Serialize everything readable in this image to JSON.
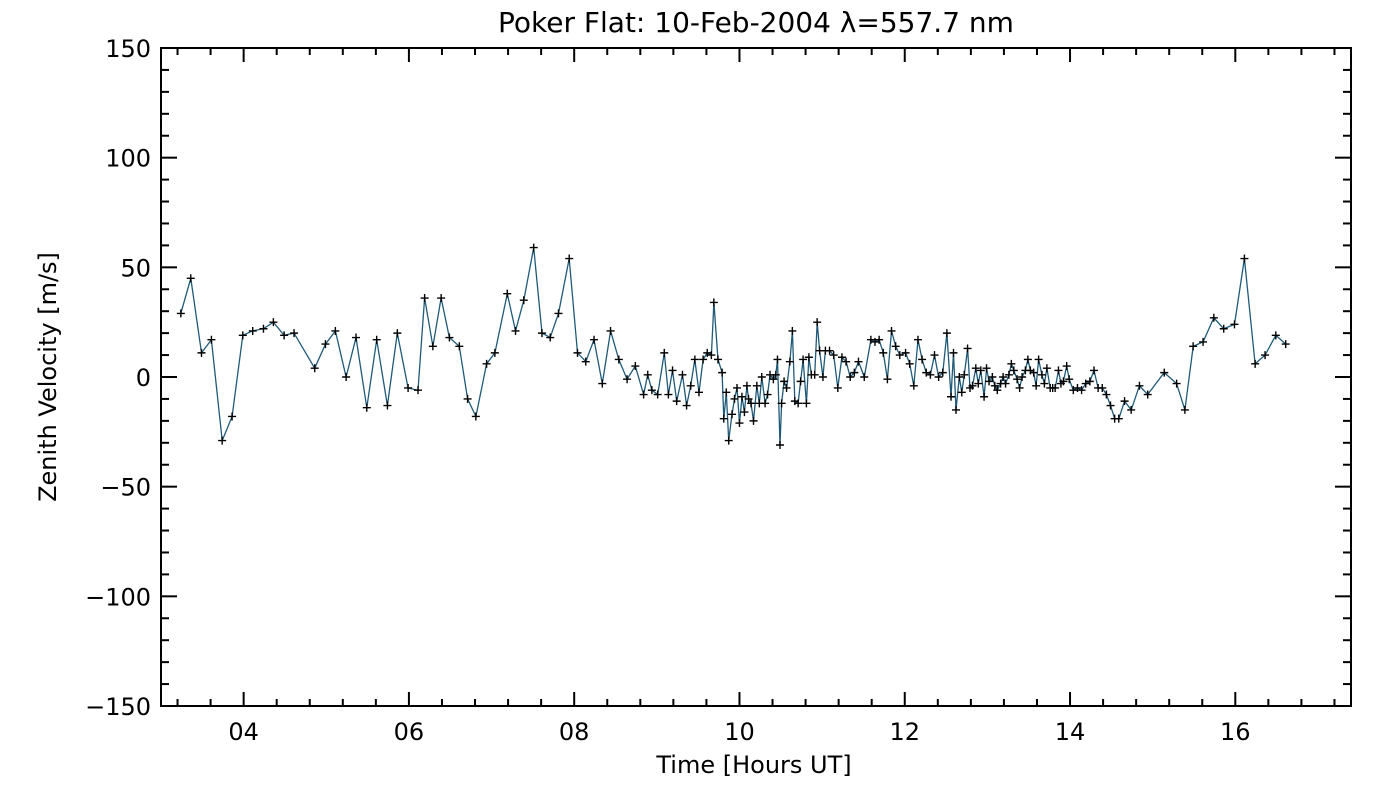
{
  "chart_data": {
    "type": "line",
    "title": "Poker Flat: 10-Feb-2004 λ=557.7 nm",
    "xlabel": "Time [Hours UT]",
    "ylabel": "Zenith Velocity [m/s]",
    "xlim": [
      3,
      17.4
    ],
    "ylim": [
      -150,
      150
    ],
    "x_ticks": [
      4,
      6,
      8,
      10,
      12,
      14,
      16
    ],
    "x_tick_labels": [
      "04",
      "06",
      "08",
      "10",
      "12",
      "14",
      "16"
    ],
    "y_ticks": [
      -150,
      -100,
      -50,
      0,
      50,
      100,
      150
    ],
    "y_tick_labels": [
      "−150",
      "−100",
      "−50",
      "0",
      "50",
      "100",
      "150"
    ],
    "line_color": "#1f5a78",
    "marker_color": "#000000",
    "series": [
      {
        "name": "Zenith Velocity",
        "points": [
          [
            3.24,
            29
          ],
          [
            3.36,
            45
          ],
          [
            3.49,
            11
          ],
          [
            3.61,
            17
          ],
          [
            3.74,
            -29
          ],
          [
            3.86,
            -18
          ],
          [
            3.99,
            19
          ],
          [
            4.11,
            21
          ],
          [
            4.24,
            22
          ],
          [
            4.36,
            25
          ],
          [
            4.49,
            19
          ],
          [
            4.61,
            20
          ],
          [
            4.86,
            4
          ],
          [
            4.99,
            15
          ],
          [
            5.11,
            21
          ],
          [
            5.24,
            0
          ],
          [
            5.36,
            18
          ],
          [
            5.49,
            -14
          ],
          [
            5.61,
            17
          ],
          [
            5.74,
            -13
          ],
          [
            5.86,
            20
          ],
          [
            5.99,
            -5
          ],
          [
            6.11,
            -6
          ],
          [
            6.19,
            36
          ],
          [
            6.29,
            14
          ],
          [
            6.39,
            36
          ],
          [
            6.49,
            18
          ],
          [
            6.61,
            14
          ],
          [
            6.71,
            -10
          ],
          [
            6.81,
            -18
          ],
          [
            6.94,
            6
          ],
          [
            7.04,
            11
          ],
          [
            7.19,
            38
          ],
          [
            7.29,
            21
          ],
          [
            7.39,
            35
          ],
          [
            7.51,
            59
          ],
          [
            7.61,
            20
          ],
          [
            7.71,
            18
          ],
          [
            7.81,
            29
          ],
          [
            7.94,
            54
          ],
          [
            8.04,
            11
          ],
          [
            8.14,
            7
          ],
          [
            8.24,
            17
          ],
          [
            8.34,
            -3
          ],
          [
            8.44,
            21
          ],
          [
            8.54,
            8
          ],
          [
            8.64,
            -1
          ],
          [
            8.74,
            5
          ],
          [
            8.84,
            -8
          ],
          [
            8.89,
            1
          ],
          [
            8.94,
            -6
          ],
          [
            9.01,
            -8
          ],
          [
            9.09,
            11
          ],
          [
            9.14,
            -8
          ],
          [
            9.19,
            3
          ],
          [
            9.24,
            -11
          ],
          [
            9.31,
            1
          ],
          [
            9.36,
            -13
          ],
          [
            9.41,
            -4
          ],
          [
            9.46,
            8
          ],
          [
            9.51,
            -7
          ],
          [
            9.56,
            8
          ],
          [
            9.61,
            11
          ],
          [
            9.66,
            10
          ],
          [
            9.69,
            34
          ],
          [
            9.74,
            8
          ],
          [
            9.79,
            2
          ],
          [
            9.81,
            -19
          ],
          [
            9.84,
            -7
          ],
          [
            9.87,
            -29
          ],
          [
            9.91,
            -17
          ],
          [
            9.94,
            -10
          ],
          [
            9.97,
            -5
          ],
          [
            10.0,
            -21
          ],
          [
            10.03,
            -9
          ],
          [
            10.06,
            -16
          ],
          [
            10.09,
            -4
          ],
          [
            10.11,
            -10
          ],
          [
            10.14,
            -12
          ],
          [
            10.17,
            -20
          ],
          [
            10.21,
            -4
          ],
          [
            10.24,
            -12
          ],
          [
            10.27,
            0
          ],
          [
            10.31,
            -12
          ],
          [
            10.34,
            -8
          ],
          [
            10.37,
            1
          ],
          [
            10.41,
            -1
          ],
          [
            10.44,
            1
          ],
          [
            10.46,
            8
          ],
          [
            10.49,
            -31
          ],
          [
            10.51,
            -12
          ],
          [
            10.54,
            -2
          ],
          [
            10.57,
            -5
          ],
          [
            10.61,
            7
          ],
          [
            10.64,
            21
          ],
          [
            10.67,
            -11
          ],
          [
            10.71,
            -12
          ],
          [
            10.74,
            -2
          ],
          [
            10.77,
            8
          ],
          [
            10.81,
            -12
          ],
          [
            10.84,
            9
          ],
          [
            10.87,
            1
          ],
          [
            10.91,
            1
          ],
          [
            10.94,
            25
          ],
          [
            10.97,
            12
          ],
          [
            11.01,
            0
          ],
          [
            11.04,
            12
          ],
          [
            11.09,
            12
          ],
          [
            11.14,
            10
          ],
          [
            11.19,
            -5
          ],
          [
            11.24,
            9
          ],
          [
            11.29,
            7
          ],
          [
            11.34,
            0
          ],
          [
            11.39,
            2
          ],
          [
            11.44,
            7
          ],
          [
            11.51,
            0
          ],
          [
            11.59,
            17
          ],
          [
            11.64,
            16
          ],
          [
            11.69,
            17
          ],
          [
            11.74,
            11
          ],
          [
            11.79,
            -1
          ],
          [
            11.84,
            21
          ],
          [
            11.89,
            14
          ],
          [
            11.94,
            10
          ],
          [
            12.01,
            11
          ],
          [
            12.06,
            6
          ],
          [
            12.11,
            -4
          ],
          [
            12.16,
            17
          ],
          [
            12.21,
            8
          ],
          [
            12.26,
            2
          ],
          [
            12.31,
            1
          ],
          [
            12.36,
            10
          ],
          [
            12.41,
            0
          ],
          [
            12.46,
            2
          ],
          [
            12.51,
            20
          ],
          [
            12.56,
            -9
          ],
          [
            12.59,
            11
          ],
          [
            12.62,
            -15
          ],
          [
            12.66,
            0
          ],
          [
            12.69,
            -7
          ],
          [
            12.72,
            1
          ],
          [
            12.76,
            13
          ],
          [
            12.79,
            -5
          ],
          [
            12.82,
            -4
          ],
          [
            12.86,
            4
          ],
          [
            12.89,
            -3
          ],
          [
            12.92,
            3
          ],
          [
            12.96,
            -9
          ],
          [
            12.99,
            4
          ],
          [
            13.02,
            -2
          ],
          [
            13.06,
            0
          ],
          [
            13.09,
            -4
          ],
          [
            13.12,
            -6
          ],
          [
            13.16,
            -3
          ],
          [
            13.19,
            0
          ],
          [
            13.22,
            -3
          ],
          [
            13.26,
            1
          ],
          [
            13.29,
            6
          ],
          [
            13.32,
            3
          ],
          [
            13.36,
            -1
          ],
          [
            13.39,
            -5
          ],
          [
            13.42,
            0
          ],
          [
            13.46,
            3
          ],
          [
            13.49,
            8
          ],
          [
            13.52,
            3
          ],
          [
            13.56,
            2
          ],
          [
            13.59,
            -4
          ],
          [
            13.62,
            8
          ],
          [
            13.66,
            1
          ],
          [
            13.69,
            -3
          ],
          [
            13.72,
            4
          ],
          [
            13.76,
            -5
          ],
          [
            13.79,
            -5
          ],
          [
            13.82,
            -5
          ],
          [
            13.86,
            3
          ],
          [
            13.89,
            -3
          ],
          [
            13.92,
            -2
          ],
          [
            13.96,
            5
          ],
          [
            13.99,
            -1
          ],
          [
            14.04,
            -6
          ],
          [
            14.09,
            -5
          ],
          [
            14.14,
            -6
          ],
          [
            14.19,
            -3
          ],
          [
            14.24,
            -2
          ],
          [
            14.29,
            3
          ],
          [
            14.34,
            -5
          ],
          [
            14.39,
            -5
          ],
          [
            14.44,
            -8
          ],
          [
            14.49,
            -13
          ],
          [
            14.54,
            -19
          ],
          [
            14.59,
            -19
          ],
          [
            14.66,
            -11
          ],
          [
            14.74,
            -15
          ],
          [
            14.84,
            -4
          ],
          [
            14.94,
            -8
          ],
          [
            15.14,
            2
          ],
          [
            15.29,
            -3
          ],
          [
            15.39,
            -15
          ],
          [
            15.49,
            14
          ],
          [
            15.61,
            16
          ],
          [
            15.74,
            27
          ],
          [
            15.86,
            22
          ],
          [
            15.99,
            24
          ],
          [
            16.11,
            54
          ],
          [
            16.24,
            6
          ],
          [
            16.36,
            10
          ],
          [
            16.49,
            19
          ],
          [
            16.61,
            15
          ]
        ]
      }
    ]
  }
}
